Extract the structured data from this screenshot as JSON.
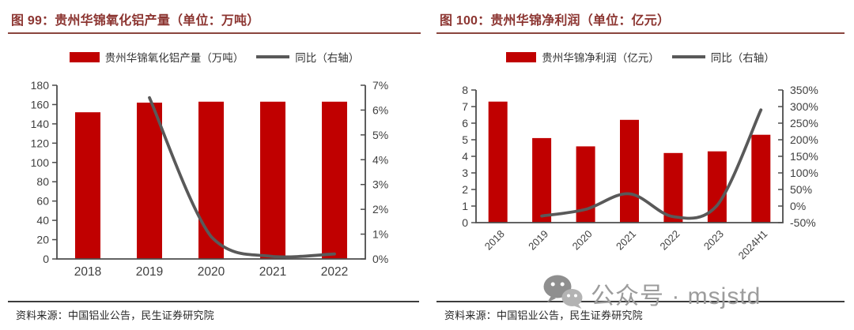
{
  "colors": {
    "bar_red": "#C00000",
    "line_gray": "#595959",
    "title_red": "#8C3531",
    "title_underline": "#8A453E",
    "axis_line": "#4d4d4d",
    "axis_label": "#3f3f3f",
    "divider": "#3d3d3d",
    "source_text": "#262626",
    "watermark_gray": "#9c9c9c"
  },
  "sources": {
    "left": "资料来源：中国铝业公告，民生证券研究院",
    "right": "资料来源：中国铝业公告，民生证券研究院"
  },
  "watermark": {
    "icon": "wechat-logo",
    "text": "公众号 · msjstd"
  },
  "chart_data": [
    {
      "type": "bar",
      "subtype": "bar+line-dual-axis",
      "title": "图 99：贵州华锦氧化铝产量（单位：万吨）",
      "legend": [
        "贵州华锦氧化铝产量（万吨）",
        "同比（右轴）"
      ],
      "legend_position": "top",
      "grid": false,
      "categories": [
        "2018",
        "2019",
        "2020",
        "2021",
        "2022"
      ],
      "series": [
        {
          "name": "贵州华锦氧化铝产量（万吨）",
          "type": "bar",
          "axis": "left",
          "values": [
            152,
            162,
            163,
            163,
            163
          ]
        },
        {
          "name": "同比（右轴）",
          "type": "line",
          "axis": "right",
          "values": [
            null,
            6.5,
            0.9,
            0.1,
            0.2
          ]
        }
      ],
      "left_axis": {
        "min": 0,
        "max": 180,
        "tick_labels": [
          "0",
          "20",
          "40",
          "60",
          "80",
          "100",
          "120",
          "140",
          "160",
          "180"
        ]
      },
      "right_axis": {
        "min": 0,
        "max": 7,
        "tick_labels": [
          "0%",
          "1%",
          "2%",
          "3%",
          "4%",
          "5%",
          "6%",
          "7%"
        ]
      },
      "x_label_rotation": 0
    },
    {
      "type": "bar",
      "subtype": "bar+line-dual-axis",
      "title": "图 100：贵州华锦净利润（单位：亿元）",
      "legend": [
        "贵州华锦净利润（亿元）",
        "同比（右轴）"
      ],
      "legend_position": "top",
      "grid": false,
      "categories": [
        "2018",
        "2019",
        "2020",
        "2021",
        "2022",
        "2023",
        "2024H1"
      ],
      "series": [
        {
          "name": "贵州华锦净利润（亿元）",
          "type": "bar",
          "axis": "left",
          "values": [
            7.3,
            5.1,
            4.6,
            6.2,
            4.2,
            4.3,
            5.3
          ]
        },
        {
          "name": "同比（右轴）",
          "type": "line",
          "axis": "right",
          "values": [
            null,
            -30,
            -10,
            37,
            -32,
            2,
            290
          ]
        }
      ],
      "left_axis": {
        "min": 0,
        "max": 8,
        "tick_labels": [
          "0",
          "1",
          "2",
          "3",
          "4",
          "5",
          "6",
          "7",
          "8"
        ]
      },
      "right_axis": {
        "min": -50,
        "max": 350,
        "tick_labels": [
          "-50%",
          "0%",
          "50%",
          "100%",
          "150%",
          "200%",
          "250%",
          "300%",
          "350%"
        ]
      },
      "x_label_rotation": -45
    }
  ]
}
